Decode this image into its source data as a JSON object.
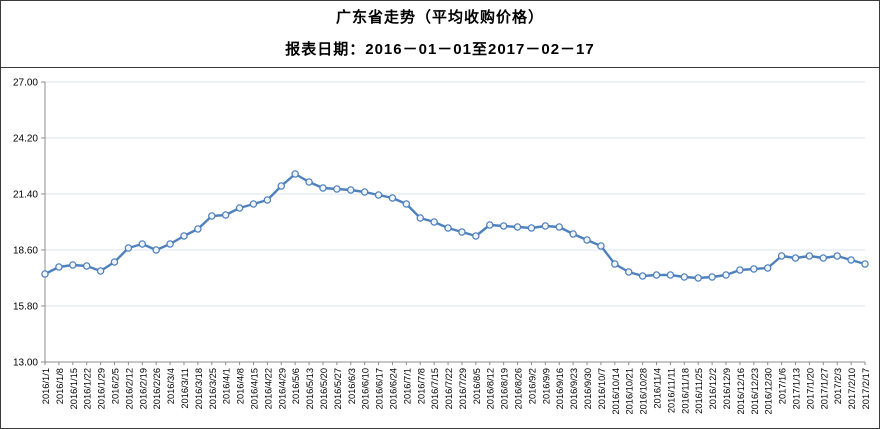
{
  "page": {
    "title": "广东省走势（平均收购价格）",
    "subtitle": "报表日期：2016－01－01至2017－02－17"
  },
  "chart_data": {
    "type": "line",
    "title": "广东省走势（平均收购价格）",
    "subtitle": "报表日期：2016－01－01至2017－02－17",
    "x": [
      "2016/1/1",
      "2016/1/8",
      "2016/1/15",
      "2016/1/22",
      "2016/1/29",
      "2016/2/5",
      "2016/2/12",
      "2016/2/19",
      "2016/2/26",
      "2016/3/4",
      "2016/3/11",
      "2016/3/18",
      "2016/3/25",
      "2016/4/1",
      "2016/4/8",
      "2016/4/15",
      "2016/4/22",
      "2016/4/29",
      "2016/5/6",
      "2016/5/13",
      "2016/5/20",
      "2016/5/27",
      "2016/6/3",
      "2016/6/10",
      "2016/6/17",
      "2016/6/24",
      "2016/7/1",
      "2016/7/8",
      "2016/7/15",
      "2016/7/22",
      "2016/7/29",
      "2016/8/5",
      "2016/8/12",
      "2016/8/19",
      "2016/8/26",
      "2016/9/2",
      "2016/9/9",
      "2016/9/16",
      "2016/9/23",
      "2016/9/30",
      "2016/10/7",
      "2016/10/14",
      "2016/10/21",
      "2016/10/28",
      "2016/11/4",
      "2016/11/11",
      "2016/11/18",
      "2016/11/25",
      "2016/12/2",
      "2016/12/9",
      "2016/12/16",
      "2016/12/23",
      "2016/12/30",
      "2017/1/6",
      "2017/1/13",
      "2017/1/20",
      "2017/1/27",
      "2017/2/3",
      "2017/2/10",
      "2017/2/17"
    ],
    "series": [
      {
        "values": [
          17.4,
          17.75,
          17.85,
          17.8,
          17.55,
          18.0,
          18.7,
          18.9,
          18.6,
          18.9,
          19.3,
          19.65,
          20.3,
          20.35,
          20.7,
          20.9,
          21.1,
          21.8,
          22.4,
          22.0,
          21.7,
          21.65,
          21.6,
          21.5,
          21.35,
          21.2,
          20.9,
          20.2,
          20.0,
          19.7,
          19.5,
          19.3,
          19.85,
          19.8,
          19.75,
          19.7,
          19.8,
          19.75,
          19.4,
          19.1,
          18.8,
          17.9,
          17.5,
          17.3,
          17.35,
          17.35,
          17.25,
          17.2,
          17.25,
          17.35,
          17.6,
          17.65,
          17.7,
          18.3,
          18.2,
          18.3,
          18.2,
          18.3,
          18.1,
          17.9
        ],
        "color": "#4f81bd"
      }
    ],
    "ylim": [
      13.0,
      27.0
    ],
    "yticks": [
      13.0,
      15.8,
      18.6,
      21.4,
      24.2,
      27.0
    ],
    "ytick_labels": [
      "13.00",
      "15.80",
      "18.60",
      "21.40",
      "24.20",
      "27.00"
    ],
    "xlabel": "",
    "ylabel": "",
    "grid": "horizontal",
    "legend": "none",
    "marker": "open-circle",
    "colors": {
      "line": "#4f81bd",
      "marker_fill": "#ffffff",
      "grid": "#dbe5f1",
      "axis": "#8c8c8c",
      "text": "#000000"
    }
  }
}
